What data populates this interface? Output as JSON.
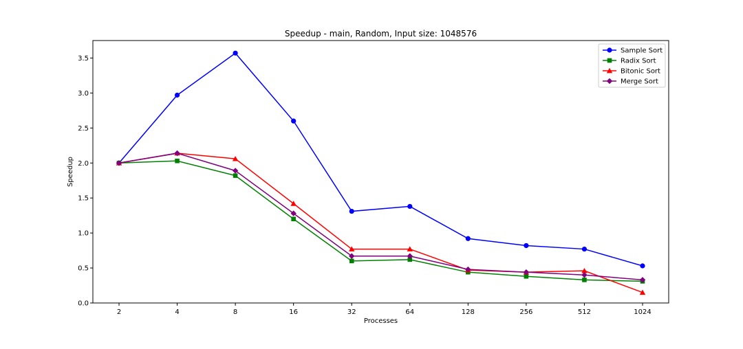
{
  "chart_data": {
    "type": "line",
    "title": "Speedup - main, Random, Input size: 1048576",
    "xlabel": "Processes",
    "ylabel": "Speedup",
    "x_scale": "log2 (categorical ticks)",
    "categories": [
      "2",
      "4",
      "8",
      "16",
      "32",
      "64",
      "128",
      "256",
      "512",
      "1024"
    ],
    "ylim": [
      0.0,
      3.75
    ],
    "yticks": [
      "0.0",
      "0.5",
      "1.0",
      "1.5",
      "2.0",
      "2.5",
      "3.0",
      "3.5"
    ],
    "grid": false,
    "legend_position": "top-right",
    "series": [
      {
        "name": "Sample Sort",
        "color": "#0000ff",
        "marker": "circle",
        "values": [
          2.0,
          2.97,
          3.57,
          2.6,
          1.31,
          1.38,
          0.92,
          0.82,
          0.77,
          0.53
        ]
      },
      {
        "name": "Radix Sort",
        "color": "#008000",
        "marker": "square",
        "values": [
          2.0,
          2.03,
          1.82,
          1.2,
          0.6,
          0.62,
          0.44,
          0.38,
          0.33,
          0.31
        ]
      },
      {
        "name": "Bitonic Sort",
        "color": "#ff0000",
        "marker": "triangle",
        "values": [
          2.0,
          2.14,
          2.06,
          1.42,
          0.77,
          0.77,
          0.47,
          0.44,
          0.46,
          0.15
        ]
      },
      {
        "name": "Merge Sort",
        "color": "#800080",
        "marker": "diamond",
        "values": [
          2.0,
          2.14,
          1.89,
          1.28,
          0.67,
          0.67,
          0.48,
          0.44,
          0.4,
          0.33
        ]
      }
    ]
  }
}
